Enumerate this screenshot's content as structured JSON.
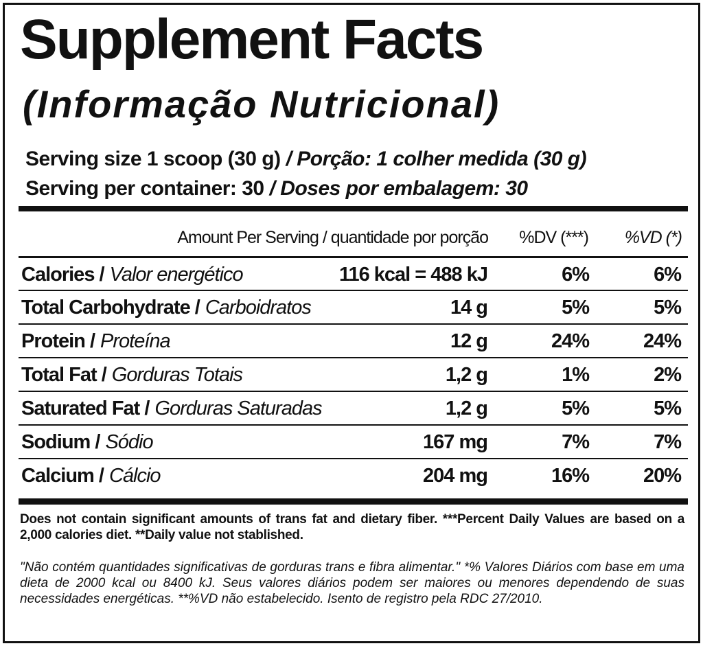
{
  "header": {
    "title": "Supplement Facts",
    "subtitle": "(Informação Nutricional)",
    "serving_size": {
      "en": "Serving size 1 scoop (30 g)",
      "pt": "/ Porção: 1 colher medida (30 g)"
    },
    "servings": {
      "en": "Serving per container: 30",
      "pt": "/ Doses por embalagem: 30"
    }
  },
  "table": {
    "columns": [
      "Amount Per Serving / quantidade por porção",
      "%DV (***)",
      "%VD (*)"
    ],
    "rows": [
      {
        "name": "Calories /",
        "name_pt": "Valor energético",
        "amount": "116 kcal = 488 kJ",
        "dv": "6%",
        "vd": "6%"
      },
      {
        "name": "Total Carbohydrate /",
        "name_pt": "Carboidratos",
        "amount": "14 g",
        "dv": "5%",
        "vd": "5%"
      },
      {
        "name": "Protein /",
        "name_pt": "Proteína",
        "amount": "12 g",
        "dv": "24%",
        "vd": "24%"
      },
      {
        "name": "Total Fat /",
        "name_pt": "Gorduras Totais",
        "amount": "1,2 g",
        "dv": "1%",
        "vd": "2%"
      },
      {
        "name": "Saturated Fat /",
        "name_pt": "Gorduras Saturadas",
        "amount": "1,2 g",
        "dv": "5%",
        "vd": "5%"
      },
      {
        "name": "Sodium /",
        "name_pt": "Sódio",
        "amount": "167 mg",
        "dv": "7%",
        "vd": "7%"
      },
      {
        "name": "Calcium /",
        "name_pt": "Cálcio",
        "amount": "204 mg",
        "dv": "16%",
        "vd": "20%"
      }
    ]
  },
  "footnotes": {
    "en": "Does not contain significant amounts of trans fat and dietary fiber. ***Percent Daily Values are based on a 2,000 calories diet. **Daily value not stablished.",
    "pt": "\"Não contém quantidades significativas de gorduras trans e fibra alimentar.\" *% Valores Diários com base em uma dieta de 2000 kcal ou 8400 kJ. Seus valores diários podem ser maiores ou menores dependendo de suas necessidades energéticas. **%VD não estabelecido. Isento de registro pela RDC 27/2010."
  }
}
